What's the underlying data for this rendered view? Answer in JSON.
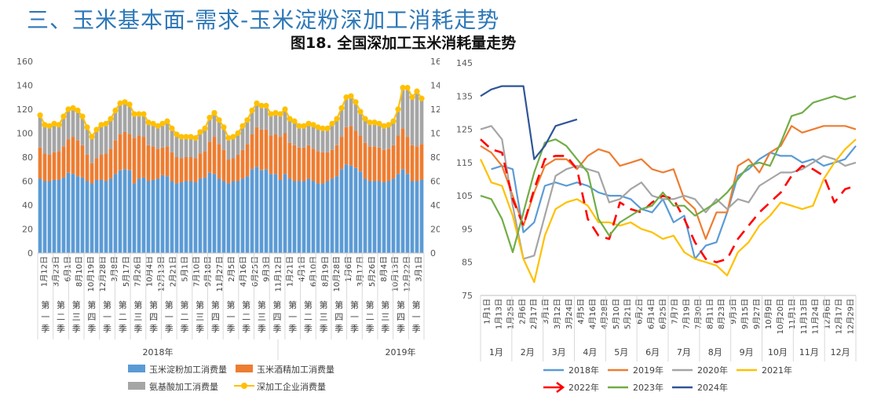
{
  "page": {
    "section_title": "三、玉米基本面-需求-玉米淀粉深加工消耗走势",
    "figure_title": "图18. 全国深加工玉米消耗量走势"
  },
  "chart_data": [
    {
      "type": "bar",
      "stacked": true,
      "title": "",
      "ylim_left": [
        0,
        160
      ],
      "yticks_left": [
        0,
        20,
        40,
        60,
        80,
        100,
        120,
        140,
        160
      ],
      "ylim_right": [
        0,
        160
      ],
      "yticks_right": [
        0,
        20,
        40,
        60,
        80,
        100,
        120,
        140,
        160
      ],
      "x_tick_labels": [
        "1月12日",
        "3月23日",
        "6月1日",
        "8月10日",
        "10月19日",
        "12月28日",
        "3月8日",
        "5月17日",
        "7月26日",
        "10月4日",
        "12月13日",
        "2月21日",
        "5月1日",
        "7月10日",
        "9月18日",
        "11月27日",
        "2月5日",
        "4月16日",
        "6月25日",
        "9月3日",
        "11月12日",
        "1月21日",
        "4月1日",
        "6月10日",
        "8月19日",
        "10月28日",
        "1月6日",
        "3月17日",
        "5月26日",
        "8月4日",
        "10月13日",
        "12月22日",
        "3月1日"
      ],
      "quarter_labels": [
        "第一季",
        "第二季",
        "第三季",
        "第四季",
        "第一季",
        "第二季",
        "第三季",
        "第四季",
        "第一季",
        "第二季",
        "第三季",
        "第四季",
        "第一季",
        "第二季",
        "第三季",
        "第四季",
        "第一季",
        "第二季",
        "第三季",
        "第四季",
        "第一季",
        "第二季",
        "第三季",
        "第四季",
        "第一季"
      ],
      "year_labels": [
        "2018年",
        "2019年",
        "2020年",
        "2021年",
        "2022年",
        "2023年",
        "2024年"
      ],
      "weeks_per_year": [
        51,
        52,
        52,
        52,
        52,
        52,
        9
      ],
      "series": [
        {
          "name": "玉米淀粉加工消费量",
          "color": "#5b9bd5",
          "values": [
            62,
            60,
            60,
            61,
            61,
            63,
            67,
            66,
            64,
            63,
            60,
            58,
            61,
            61,
            60,
            62,
            66,
            69,
            70,
            69,
            58,
            62,
            63,
            60,
            61,
            62,
            65,
            64,
            60,
            58,
            59,
            60,
            60,
            59,
            62,
            63,
            67,
            66,
            62,
            60,
            58,
            60,
            60,
            62,
            64,
            70,
            72,
            69,
            70,
            66,
            66,
            61,
            66,
            62,
            60,
            60,
            60,
            62,
            60,
            58,
            58,
            60,
            62,
            64,
            70,
            74,
            73,
            71,
            68,
            62,
            60,
            60,
            60,
            59,
            60,
            62,
            66,
            70,
            66,
            60,
            60,
            61
          ]
        },
        {
          "name": "玉米酒精加工消费量",
          "color": "#ed7d31",
          "values": [
            26,
            23,
            22,
            23,
            24,
            26,
            28,
            31,
            30,
            27,
            22,
            17,
            18,
            21,
            23,
            25,
            28,
            30,
            31,
            30,
            38,
            36,
            34,
            30,
            28,
            25,
            23,
            25,
            24,
            22,
            20,
            20,
            20,
            20,
            21,
            22,
            26,
            31,
            29,
            26,
            20,
            19,
            22,
            24,
            27,
            29,
            33,
            34,
            33,
            32,
            33,
            36,
            34,
            30,
            30,
            28,
            28,
            28,
            27,
            27,
            26,
            24,
            24,
            26,
            27,
            31,
            33,
            31,
            30,
            30,
            29,
            29,
            28,
            27,
            27,
            28,
            32,
            34,
            31,
            30,
            29,
            30
          ]
        },
        {
          "name": "氨基酸加工消费量",
          "color": "#a5a5a5",
          "values": [
            27,
            24,
            24,
            24,
            22,
            25,
            25,
            24,
            25,
            24,
            23,
            22,
            24,
            25,
            25,
            25,
            25,
            26,
            25,
            25,
            20,
            18,
            19,
            19,
            19,
            19,
            20,
            21,
            20,
            19,
            18,
            17,
            17,
            17,
            18,
            19,
            20,
            20,
            20,
            19,
            18,
            18,
            18,
            20,
            20,
            20,
            20,
            20,
            20,
            18,
            18,
            19,
            20,
            20,
            20,
            18,
            18,
            18,
            20,
            20,
            20,
            20,
            22,
            22,
            24,
            25,
            25,
            24,
            20,
            20,
            20,
            20,
            20,
            20,
            20,
            20,
            22,
            34,
            41,
            40,
            45,
            38
          ]
        }
      ],
      "total_series": {
        "name": "深加工企业消费量",
        "color": "#ffc000",
        "values": [
          115,
          107,
          106,
          108,
          107,
          114,
          120,
          121,
          119,
          114,
          105,
          97,
          103,
          107,
          108,
          112,
          119,
          125,
          126,
          124,
          116,
          116,
          116,
          109,
          108,
          106,
          108,
          110,
          104,
          99,
          97,
          97,
          97,
          96,
          101,
          104,
          113,
          117,
          111,
          105,
          96,
          97,
          100,
          106,
          111,
          119,
          125,
          123,
          123,
          116,
          117,
          116,
          120,
          112,
          110,
          106,
          106,
          108,
          107,
          105,
          104,
          104,
          108,
          112,
          121,
          130,
          131,
          126,
          118,
          112,
          109,
          109,
          108,
          106,
          107,
          110,
          120,
          138,
          138,
          130,
          135,
          129
        ]
      }
    },
    {
      "type": "line",
      "title": "图18. 全国深加工玉米消耗量走势",
      "ylim": [
        75,
        145
      ],
      "yticks": [
        75,
        85,
        95,
        105,
        115,
        125,
        135,
        145
      ],
      "x_tick_labels": [
        "1月1日",
        "1月13日",
        "1月25日",
        "2月6日",
        "2月17日",
        "3月1日",
        "3月12日",
        "3月24日",
        "4月5日",
        "4月16日",
        "4月28日",
        "5月10日",
        "5月21日",
        "6月2日",
        "6月14日",
        "6月25日",
        "7月7日",
        "7月19日",
        "7月30日",
        "8月11日",
        "8月23日",
        "9月3日",
        "9月15日",
        "9月27日",
        "10月9日",
        "10月20日",
        "11月1日",
        "11月13日",
        "11月24日",
        "12月6日",
        "12月17日",
        "12月29日"
      ],
      "month_labels": [
        "1月",
        "2月",
        "3月",
        "4月",
        "5月",
        "6月",
        "7月",
        "8月",
        "9月",
        "10月",
        "11月",
        "12月"
      ],
      "series": [
        {
          "name": "2018年",
          "color": "#5b9bd5",
          "dash": false,
          "values": [
            null,
            113,
            114,
            113,
            94,
            97,
            108,
            109,
            108,
            109,
            108,
            106,
            105,
            105,
            104,
            101,
            100,
            104,
            97,
            99,
            86,
            90,
            91,
            100,
            111,
            113,
            116,
            118,
            117,
            117,
            115,
            116,
            114,
            115,
            116,
            120
          ]
        },
        {
          "name": "2019年",
          "color": "#ed7d31",
          "dash": false,
          "values": [
            120,
            118,
            114,
            105,
            96,
            106,
            114,
            116,
            116,
            113,
            117,
            119,
            118,
            114,
            115,
            116,
            113,
            112,
            113,
            104,
            101,
            92,
            100,
            100,
            114,
            116,
            112,
            118,
            120,
            126,
            124,
            125,
            126,
            126,
            126,
            125
          ]
        },
        {
          "name": "2020年",
          "color": "#a5a5a5",
          "dash": false,
          "values": [
            125,
            126,
            122,
            102,
            86,
            87,
            99,
            111,
            113,
            114,
            113,
            112,
            103,
            104,
            107,
            109,
            105,
            104,
            104,
            105,
            104,
            100,
            104,
            101,
            104,
            103,
            108,
            110,
            112,
            112,
            113,
            115,
            117,
            116,
            114,
            115
          ]
        },
        {
          "name": "2021年",
          "color": "#ffc000",
          "dash": false,
          "values": [
            116,
            109,
            108,
            99,
            86,
            79,
            93,
            101,
            103,
            104,
            102,
            97,
            97,
            96,
            97,
            95,
            94,
            92,
            93,
            88,
            86,
            85,
            84,
            81,
            88,
            91,
            96,
            99,
            103,
            102,
            101,
            102,
            110,
            115,
            119,
            122
          ]
        },
        {
          "name": "2022年",
          "color": "#ff0000",
          "dash": true,
          "values": [
            122,
            119,
            118,
            104,
            96,
            107,
            116,
            117,
            117,
            113,
            98,
            93,
            92,
            103,
            101,
            100,
            103,
            105,
            104,
            98,
            91,
            86,
            85,
            86,
            92,
            96,
            100,
            103,
            106,
            111,
            114,
            113,
            111,
            103,
            107,
            108
          ]
        },
        {
          "name": "2023年",
          "color": "#70ad47",
          "dash": false,
          "values": [
            105,
            104,
            98,
            88,
            100,
            112,
            121,
            122,
            120,
            116,
            112,
            98,
            93,
            97,
            99,
            101,
            102,
            106,
            102,
            102,
            99,
            101,
            103,
            106,
            110,
            114,
            115,
            114,
            121,
            129,
            130,
            133,
            134,
            135,
            134,
            135
          ]
        },
        {
          "name": "2024年",
          "color": "#2f5597",
          "dash": false,
          "values": [
            135,
            137,
            138,
            138,
            138,
            116,
            120,
            126,
            127,
            128
          ]
        }
      ]
    }
  ],
  "legend_left": [
    "玉米淀粉加工消费量",
    "玉米酒精加工消费量",
    "氨基酸加工消费量",
    "深加工企业消费量"
  ],
  "legend_right": [
    "2018年",
    "2019年",
    "2020年",
    "2021年",
    "2022年",
    "2023年",
    "2024年"
  ]
}
